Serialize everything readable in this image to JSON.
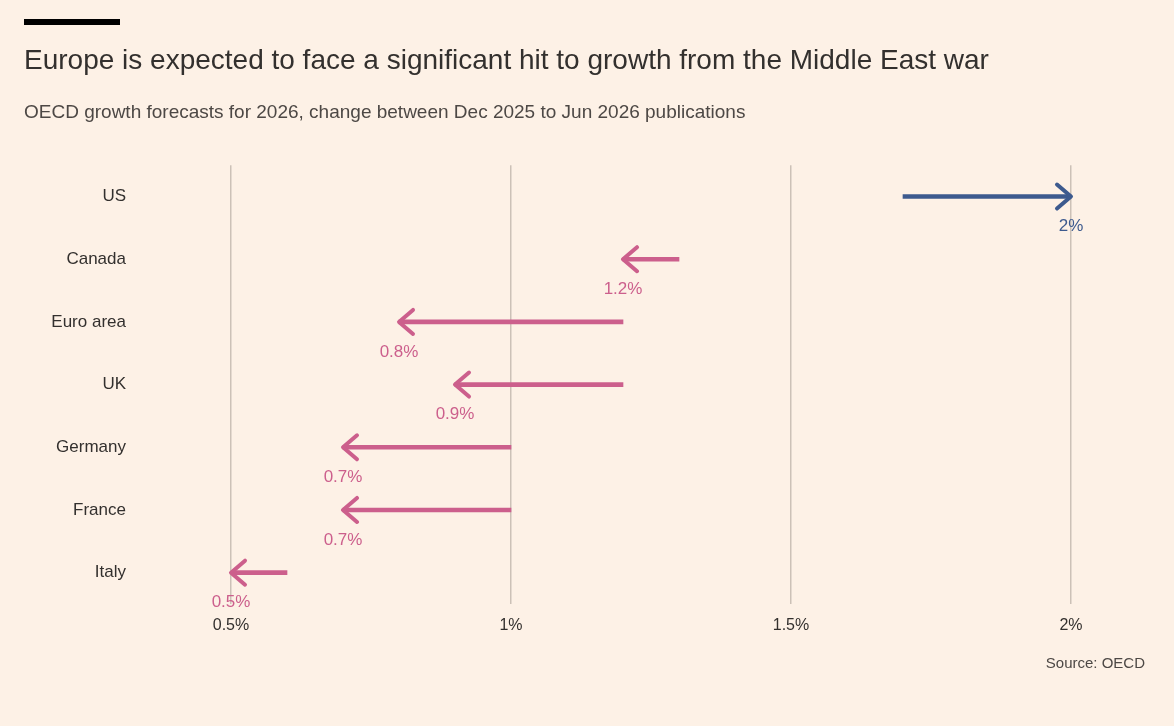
{
  "chart_data": {
    "type": "bar",
    "orientation": "horizontal",
    "title": "Europe is expected to face a significant hit to growth from the Middle East war",
    "subtitle": "OECD growth forecasts for 2026, change between Dec 2025 to Jun 2026 publications",
    "categories": [
      "US",
      "Canada",
      "Euro area",
      "UK",
      "Germany",
      "France",
      "Italy"
    ],
    "base": [
      1.7,
      1.3,
      1.2,
      1.2,
      1.0,
      1.0,
      0.6
    ],
    "values": [
      0.3,
      -0.1,
      -0.4,
      -0.3,
      -0.3,
      -0.3,
      -0.1
    ],
    "colors": [
      "#3d5a8e",
      "#cc5f8c",
      "#cc5f8c",
      "#cc5f8c",
      "#cc5f8c",
      "#cc5f8c",
      "#cc5f8c"
    ],
    "xlim": [
      0.5,
      2
    ],
    "xticks": [
      {
        "value": 0.5,
        "label": "0.5%"
      },
      {
        "value": 1,
        "label": "1%"
      },
      {
        "value": 1.5,
        "label": "1.5%"
      },
      {
        "value": 2,
        "label": "2%"
      }
    ],
    "grid": "x",
    "legend": false,
    "annotations": [
      {
        "text": "2%",
        "x": 2,
        "y": "US"
      },
      {
        "text": "1.2%",
        "x": 1.2,
        "y": "Canada"
      },
      {
        "text": "0.8%",
        "x": 0.8,
        "y": "Euro area"
      },
      {
        "text": "0.9%",
        "x": 0.9,
        "y": "UK"
      },
      {
        "text": "0.7%",
        "x": 0.7,
        "y": "Germany"
      },
      {
        "text": "0.7%",
        "x": 0.7,
        "y": "France"
      },
      {
        "text": "0.5%",
        "x": 0.5,
        "y": "Italy"
      },
      "Source: OECD"
    ]
  }
}
